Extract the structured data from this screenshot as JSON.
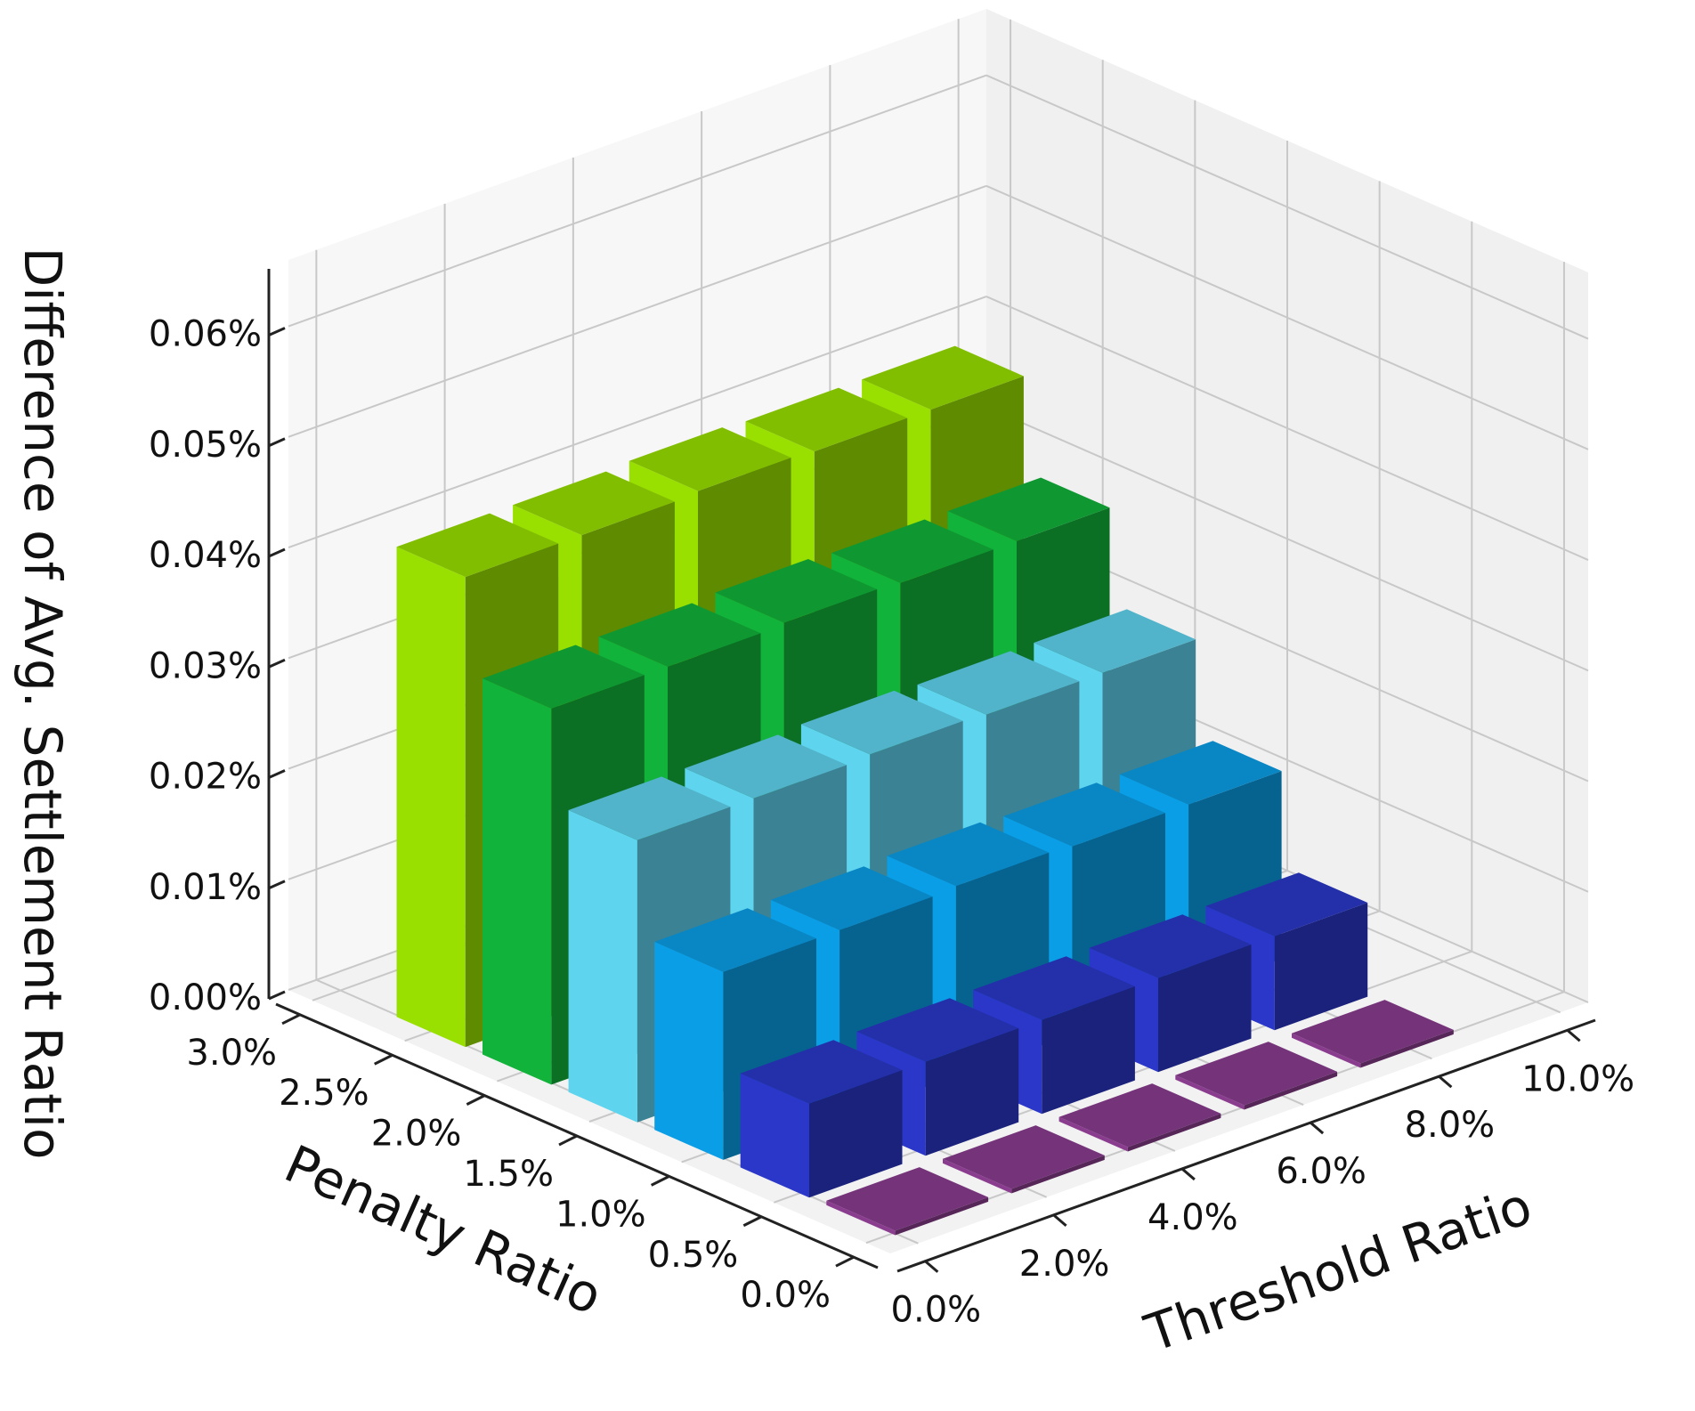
{
  "chart_data": {
    "type": "bar3d",
    "title": "",
    "zlabel": "Difference of Avg. Settlement Ratio",
    "xlabel": "Threshold Ratio",
    "ylabel": "Penalty Ratio",
    "x_categories": [
      "0.0%",
      "2.0%",
      "4.0%",
      "6.0%",
      "8.0%",
      "10.0%"
    ],
    "y_categories": [
      "0.0%",
      "0.5%",
      "1.0%",
      "1.5%",
      "2.0%",
      "2.5%",
      "3.0%"
    ],
    "z_ticks": [
      "0.00%",
      "0.01%",
      "0.02%",
      "0.03%",
      "0.04%",
      "0.05%",
      "0.06%"
    ],
    "z_tick_values": [
      0,
      0.01,
      0.02,
      0.03,
      0.04,
      0.05,
      0.06
    ],
    "zlim": [
      0,
      0.066
    ],
    "grid": true,
    "bars_note_units": "percent",
    "series": [
      {
        "name": "",
        "penalty": "0.0%",
        "color": "#8a3d8f",
        "values": [
          0,
          0,
          0,
          0,
          0
        ]
      },
      {
        "name": "",
        "penalty": "0.5%",
        "color": "#2a37c8",
        "values": [
          0.0085,
          0.0085,
          0.0085,
          0.0085,
          0.0085
        ]
      },
      {
        "name": "",
        "penalty": "1.0%",
        "color": "#0a9ee6",
        "values": [
          0.017,
          0.017,
          0.0172,
          0.017,
          0.017
        ]
      },
      {
        "name": "",
        "penalty": "1.5%",
        "color": "#5fd4ee",
        "values": [
          0.0255,
          0.0255,
          0.0257,
          0.0255,
          0.0255
        ]
      },
      {
        "name": "",
        "penalty": "2.0%",
        "color": "#12b33a",
        "values": [
          0.034,
          0.034,
          0.0342,
          0.034,
          0.034
        ]
      },
      {
        "name": "",
        "penalty": "2.5%",
        "color": "#99e000",
        "values": [
          0.0425,
          0.0425,
          0.0427,
          0.0425,
          0.0425
        ]
      }
    ]
  }
}
